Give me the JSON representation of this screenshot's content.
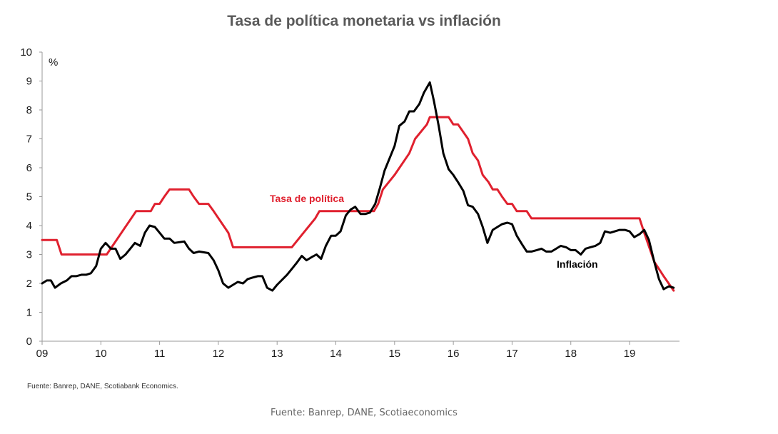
{
  "chart_data": {
    "type": "line",
    "title": "Tasa de política monetaria vs inflación",
    "ylabel": "%",
    "ylim": [
      0,
      10
    ],
    "xlim": [
      2009,
      2019.85
    ],
    "yticks": [
      "0",
      "1",
      "2",
      "3",
      "4",
      "5",
      "6",
      "7",
      "8",
      "9",
      "10"
    ],
    "xticks": [
      {
        "value": 2009,
        "label": "09"
      },
      {
        "value": 2010,
        "label": "10"
      },
      {
        "value": 2011,
        "label": "11"
      },
      {
        "value": 2012,
        "label": "12"
      },
      {
        "value": 2013,
        "label": "13"
      },
      {
        "value": 2014,
        "label": "14"
      },
      {
        "value": 2015,
        "label": "15"
      },
      {
        "value": 2016,
        "label": "16"
      },
      {
        "value": 2017,
        "label": "17"
      },
      {
        "value": 2018,
        "label": "18"
      },
      {
        "value": 2019,
        "label": "19"
      }
    ],
    "grid": false,
    "series": [
      {
        "name": "Tasa de política",
        "color": "#e0202e",
        "points": [
          [
            2009.0,
            3.5
          ],
          [
            2009.25,
            3.5
          ],
          [
            2009.33,
            3.0
          ],
          [
            2009.5,
            3.0
          ],
          [
            2009.75,
            3.0
          ],
          [
            2010.0,
            3.0
          ],
          [
            2010.1,
            3.0
          ],
          [
            2010.6,
            4.5
          ],
          [
            2010.8,
            4.5
          ],
          [
            2010.85,
            4.5
          ],
          [
            2010.92,
            4.75
          ],
          [
            2011.0,
            4.75
          ],
          [
            2011.08,
            5.0
          ],
          [
            2011.17,
            5.25
          ],
          [
            2011.25,
            5.25
          ],
          [
            2011.5,
            5.25
          ],
          [
            2011.58,
            5.0
          ],
          [
            2011.67,
            4.75
          ],
          [
            2011.83,
            4.75
          ],
          [
            2011.92,
            4.5
          ],
          [
            2012.17,
            3.75
          ],
          [
            2012.25,
            3.25
          ],
          [
            2012.5,
            3.25
          ],
          [
            2012.75,
            3.25
          ],
          [
            2013.0,
            3.25
          ],
          [
            2013.25,
            3.25
          ],
          [
            2013.45,
            3.75
          ],
          [
            2013.65,
            4.25
          ],
          [
            2013.72,
            4.5
          ],
          [
            2014.0,
            4.5
          ],
          [
            2014.25,
            4.5
          ],
          [
            2014.5,
            4.5
          ],
          [
            2014.65,
            4.5
          ],
          [
            2014.72,
            4.75
          ],
          [
            2014.8,
            5.25
          ],
          [
            2015.0,
            5.75
          ],
          [
            2015.25,
            6.5
          ],
          [
            2015.35,
            7.0
          ],
          [
            2015.55,
            7.5
          ],
          [
            2015.6,
            7.75
          ],
          [
            2015.92,
            7.75
          ],
          [
            2016.0,
            7.5
          ],
          [
            2016.08,
            7.5
          ],
          [
            2016.25,
            7.0
          ],
          [
            2016.33,
            6.5
          ],
          [
            2016.42,
            6.25
          ],
          [
            2016.5,
            5.75
          ],
          [
            2016.6,
            5.5
          ],
          [
            2016.67,
            5.25
          ],
          [
            2016.75,
            5.25
          ],
          [
            2016.83,
            5.0
          ],
          [
            2016.92,
            4.75
          ],
          [
            2017.0,
            4.75
          ],
          [
            2017.08,
            4.5
          ],
          [
            2017.25,
            4.5
          ],
          [
            2017.33,
            4.25
          ],
          [
            2017.5,
            4.25
          ],
          [
            2018.0,
            4.25
          ],
          [
            2018.5,
            4.25
          ],
          [
            2019.0,
            4.25
          ],
          [
            2019.17,
            4.25
          ],
          [
            2019.25,
            3.75
          ],
          [
            2019.42,
            2.75
          ],
          [
            2019.58,
            2.25
          ],
          [
            2019.75,
            1.75
          ]
        ]
      },
      {
        "name": "Inflación",
        "color": "#000000",
        "points": [
          [
            2009.0,
            2.0
          ],
          [
            2009.08,
            2.1
          ],
          [
            2009.15,
            2.1
          ],
          [
            2009.22,
            1.85
          ],
          [
            2009.32,
            2.0
          ],
          [
            2009.42,
            2.1
          ],
          [
            2009.5,
            2.25
          ],
          [
            2009.58,
            2.25
          ],
          [
            2009.67,
            2.3
          ],
          [
            2009.75,
            2.3
          ],
          [
            2009.83,
            2.35
          ],
          [
            2009.92,
            2.6
          ],
          [
            2010.0,
            3.2
          ],
          [
            2010.08,
            3.4
          ],
          [
            2010.17,
            3.2
          ],
          [
            2010.25,
            3.2
          ],
          [
            2010.33,
            2.85
          ],
          [
            2010.42,
            3.0
          ],
          [
            2010.5,
            3.2
          ],
          [
            2010.58,
            3.4
          ],
          [
            2010.67,
            3.3
          ],
          [
            2010.75,
            3.75
          ],
          [
            2010.83,
            4.0
          ],
          [
            2010.92,
            3.95
          ],
          [
            2011.0,
            3.75
          ],
          [
            2011.08,
            3.55
          ],
          [
            2011.17,
            3.55
          ],
          [
            2011.25,
            3.4
          ],
          [
            2011.42,
            3.45
          ],
          [
            2011.5,
            3.2
          ],
          [
            2011.58,
            3.05
          ],
          [
            2011.67,
            3.1
          ],
          [
            2011.83,
            3.05
          ],
          [
            2011.92,
            2.8
          ],
          [
            2012.0,
            2.45
          ],
          [
            2012.08,
            2.0
          ],
          [
            2012.17,
            1.85
          ],
          [
            2012.25,
            1.95
          ],
          [
            2012.33,
            2.05
          ],
          [
            2012.42,
            2.0
          ],
          [
            2012.5,
            2.15
          ],
          [
            2012.58,
            2.2
          ],
          [
            2012.67,
            2.25
          ],
          [
            2012.75,
            2.25
          ],
          [
            2012.83,
            1.85
          ],
          [
            2012.92,
            1.75
          ],
          [
            2013.0,
            1.95
          ],
          [
            2013.17,
            2.3
          ],
          [
            2013.25,
            2.5
          ],
          [
            2013.33,
            2.7
          ],
          [
            2013.42,
            2.95
          ],
          [
            2013.5,
            2.8
          ],
          [
            2013.58,
            2.9
          ],
          [
            2013.67,
            3.0
          ],
          [
            2013.75,
            2.85
          ],
          [
            2013.83,
            3.3
          ],
          [
            2013.92,
            3.65
          ],
          [
            2014.0,
            3.65
          ],
          [
            2014.08,
            3.8
          ],
          [
            2014.17,
            4.35
          ],
          [
            2014.25,
            4.55
          ],
          [
            2014.33,
            4.65
          ],
          [
            2014.42,
            4.4
          ],
          [
            2014.5,
            4.4
          ],
          [
            2014.58,
            4.45
          ],
          [
            2014.67,
            4.75
          ],
          [
            2014.75,
            5.3
          ],
          [
            2014.83,
            5.9
          ],
          [
            2014.92,
            6.35
          ],
          [
            2015.0,
            6.75
          ],
          [
            2015.08,
            7.45
          ],
          [
            2015.17,
            7.6
          ],
          [
            2015.25,
            7.95
          ],
          [
            2015.33,
            7.95
          ],
          [
            2015.42,
            8.2
          ],
          [
            2015.5,
            8.6
          ],
          [
            2015.6,
            8.95
          ],
          [
            2015.67,
            8.3
          ],
          [
            2015.75,
            7.45
          ],
          [
            2015.83,
            6.5
          ],
          [
            2015.92,
            5.95
          ],
          [
            2016.0,
            5.75
          ],
          [
            2016.08,
            5.5
          ],
          [
            2016.17,
            5.2
          ],
          [
            2016.25,
            4.7
          ],
          [
            2016.33,
            4.65
          ],
          [
            2016.42,
            4.4
          ],
          [
            2016.5,
            3.95
          ],
          [
            2016.58,
            3.4
          ],
          [
            2016.67,
            3.85
          ],
          [
            2016.75,
            3.95
          ],
          [
            2016.83,
            4.05
          ],
          [
            2016.92,
            4.1
          ],
          [
            2017.0,
            4.05
          ],
          [
            2017.08,
            3.65
          ],
          [
            2017.17,
            3.35
          ],
          [
            2017.25,
            3.1
          ],
          [
            2017.33,
            3.1
          ],
          [
            2017.42,
            3.15
          ],
          [
            2017.5,
            3.2
          ],
          [
            2017.58,
            3.1
          ],
          [
            2017.67,
            3.1
          ],
          [
            2017.75,
            3.2
          ],
          [
            2017.83,
            3.3
          ],
          [
            2017.92,
            3.25
          ],
          [
            2018.0,
            3.15
          ],
          [
            2018.08,
            3.15
          ],
          [
            2018.17,
            3.0
          ],
          [
            2018.25,
            3.2
          ],
          [
            2018.33,
            3.25
          ],
          [
            2018.42,
            3.3
          ],
          [
            2018.5,
            3.4
          ],
          [
            2018.58,
            3.8
          ],
          [
            2018.67,
            3.75
          ],
          [
            2018.75,
            3.8
          ],
          [
            2018.83,
            3.85
          ],
          [
            2018.92,
            3.85
          ],
          [
            2019.0,
            3.8
          ],
          [
            2019.08,
            3.6
          ],
          [
            2019.17,
            3.7
          ],
          [
            2019.25,
            3.85
          ],
          [
            2019.33,
            3.5
          ],
          [
            2019.42,
            2.75
          ],
          [
            2019.5,
            2.15
          ],
          [
            2019.58,
            1.8
          ],
          [
            2019.67,
            1.9
          ],
          [
            2019.75,
            1.85
          ]
        ]
      }
    ],
    "annotations": [
      {
        "text": "Tasa de política",
        "color": "#e0202e"
      },
      {
        "text": "Inflación",
        "color": "#000000"
      }
    ]
  },
  "footer": {
    "source_small": "Fuente: Banrep, DANE, Scotiabank Economics.",
    "source_bottom": "Fuente: Banrep, DANE, Scotiaeconomics"
  }
}
